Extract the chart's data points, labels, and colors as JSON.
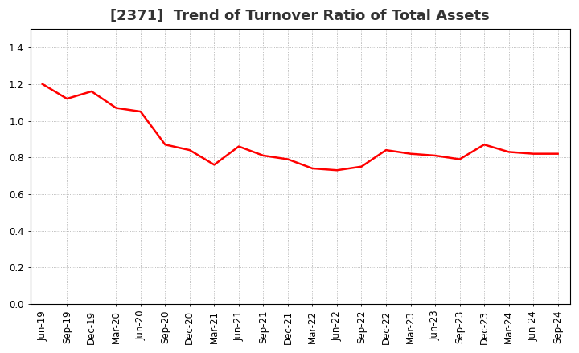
{
  "title": "[2371]  Trend of Turnover Ratio of Total Assets",
  "x_labels": [
    "Jun-19",
    "Sep-19",
    "Dec-19",
    "Mar-20",
    "Jun-20",
    "Sep-20",
    "Dec-20",
    "Mar-21",
    "Jun-21",
    "Sep-21",
    "Dec-21",
    "Mar-22",
    "Jun-22",
    "Sep-22",
    "Dec-22",
    "Mar-23",
    "Jun-23",
    "Sep-23",
    "Dec-23",
    "Mar-24",
    "Jun-24",
    "Sep-24"
  ],
  "values": [
    1.2,
    1.12,
    1.16,
    1.07,
    1.05,
    0.87,
    0.84,
    0.76,
    0.86,
    0.81,
    0.79,
    0.74,
    0.73,
    0.75,
    0.84,
    0.82,
    0.81,
    0.79,
    0.87,
    0.83,
    0.82,
    0.82
  ],
  "line_color": "#ff0000",
  "line_width": 1.8,
  "ylim": [
    0.0,
    1.5
  ],
  "yticks": [
    0.0,
    0.2,
    0.4,
    0.6,
    0.8,
    1.0,
    1.2,
    1.4
  ],
  "background_color": "#ffffff",
  "plot_bg_color": "#ffffff",
  "grid_color": "#aaaaaa",
  "title_fontsize": 13,
  "tick_fontsize": 8.5,
  "title_color": "#333333"
}
